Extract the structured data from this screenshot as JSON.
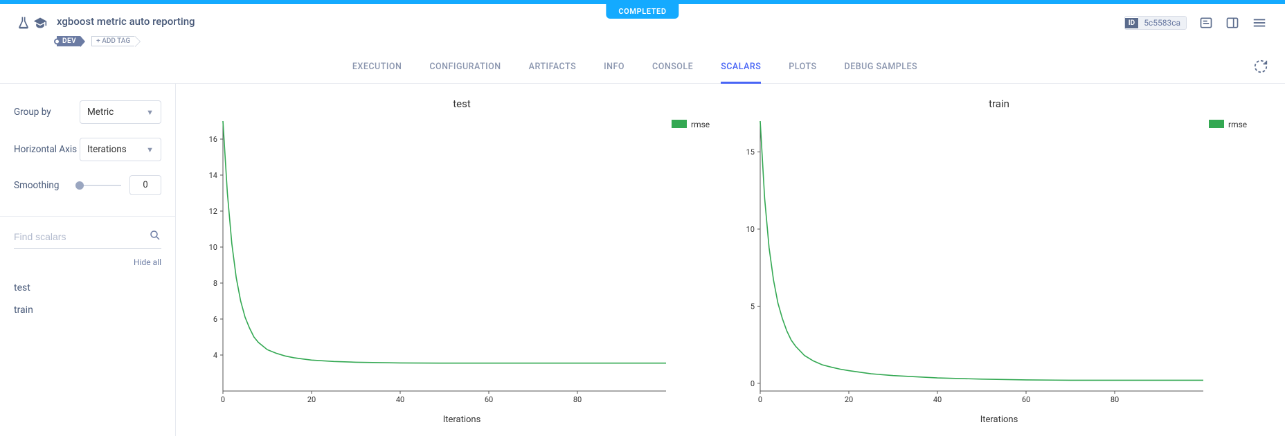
{
  "status": "COMPLETED",
  "header": {
    "title": "xgboost metric auto reporting",
    "dev_tag": "DEV",
    "add_tag": "+ ADD TAG",
    "id_label": "ID",
    "id_value": "5c5583ca"
  },
  "tabs": [
    {
      "key": "execution",
      "label": "EXECUTION",
      "active": false
    },
    {
      "key": "configuration",
      "label": "CONFIGURATION",
      "active": false
    },
    {
      "key": "artifacts",
      "label": "ARTIFACTS",
      "active": false
    },
    {
      "key": "info",
      "label": "INFO",
      "active": false
    },
    {
      "key": "console",
      "label": "CONSOLE",
      "active": false
    },
    {
      "key": "scalars",
      "label": "SCALARS",
      "active": true
    },
    {
      "key": "plots",
      "label": "PLOTS",
      "active": false
    },
    {
      "key": "debug",
      "label": "DEBUG SAMPLES",
      "active": false
    }
  ],
  "sidebar": {
    "group_by_label": "Group by",
    "group_by_value": "Metric",
    "horizontal_axis_label": "Horizontal Axis",
    "horizontal_axis_value": "Iterations",
    "smoothing_label": "Smoothing",
    "smoothing_value": "0",
    "find_placeholder": "Find scalars",
    "hide_all": "Hide all",
    "scalars": [
      "test",
      "train"
    ]
  },
  "charts": {
    "test": {
      "title": "test",
      "type": "line",
      "x_axis_label": "Iterations",
      "legend_label": "rmse",
      "legend_color": "#33a852",
      "line_color": "#33a852",
      "line_width": 1.6,
      "xlim": [
        0,
        100
      ],
      "ylim": [
        2,
        17
      ],
      "xticks": [
        0,
        20,
        40,
        60,
        80
      ],
      "yticks": [
        4,
        6,
        8,
        10,
        12,
        14,
        16
      ],
      "background_color": "#ffffff",
      "grid_color": "#f2f3f6",
      "axis_color": "#555555",
      "tick_font_size": 11,
      "x": [
        0,
        1,
        2,
        3,
        4,
        5,
        6,
        7,
        8,
        9,
        10,
        12,
        14,
        16,
        18,
        20,
        25,
        30,
        40,
        50,
        60,
        70,
        80,
        90,
        100
      ],
      "y": [
        17.0,
        13.0,
        10.2,
        8.3,
        7.0,
        6.1,
        5.5,
        5.0,
        4.7,
        4.5,
        4.3,
        4.1,
        3.95,
        3.85,
        3.78,
        3.72,
        3.64,
        3.6,
        3.56,
        3.55,
        3.55,
        3.55,
        3.55,
        3.55,
        3.55
      ]
    },
    "train": {
      "title": "train",
      "type": "line",
      "x_axis_label": "Iterations",
      "legend_label": "rmse",
      "legend_color": "#33a852",
      "line_color": "#33a852",
      "line_width": 1.6,
      "xlim": [
        0,
        100
      ],
      "ylim": [
        -0.5,
        17
      ],
      "xticks": [
        0,
        20,
        40,
        60,
        80
      ],
      "yticks": [
        0,
        5,
        10,
        15
      ],
      "background_color": "#ffffff",
      "grid_color": "#f2f3f6",
      "axis_color": "#555555",
      "tick_font_size": 11,
      "x": [
        0,
        1,
        2,
        3,
        4,
        5,
        6,
        7,
        8,
        9,
        10,
        12,
        14,
        16,
        18,
        20,
        25,
        30,
        40,
        50,
        60,
        70,
        80,
        90,
        100
      ],
      "y": [
        17.0,
        12.0,
        8.8,
        6.7,
        5.2,
        4.2,
        3.4,
        2.8,
        2.4,
        2.1,
        1.8,
        1.45,
        1.2,
        1.05,
        0.92,
        0.82,
        0.62,
        0.5,
        0.35,
        0.27,
        0.22,
        0.2,
        0.2,
        0.2,
        0.2
      ]
    }
  }
}
